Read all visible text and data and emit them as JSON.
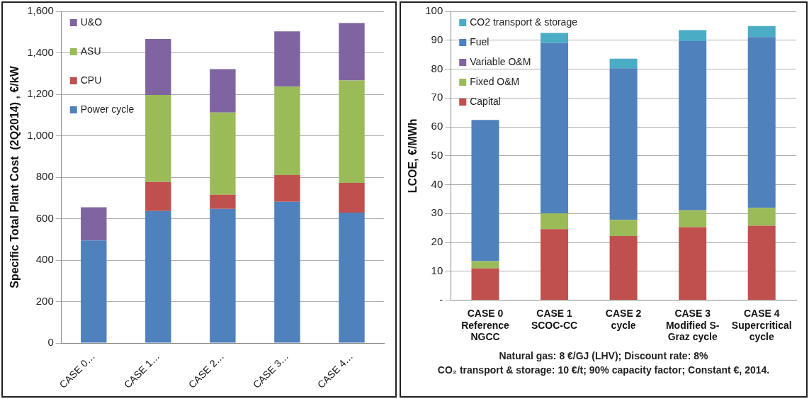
{
  "chart_data": [
    {
      "type": "bar",
      "stacked": true,
      "ylabel": "Specific Total Plant Cost  (2Q2014) , €/kW",
      "categories": [
        "CASE 0…",
        "CASE 1…",
        "CASE 2…",
        "CASE 3…",
        "CASE 4…"
      ],
      "series": [
        {
          "name": "Power cycle",
          "color": "#4f81bd",
          "values": [
            495,
            637,
            647,
            681,
            629
          ]
        },
        {
          "name": "CPU",
          "color": "#c0504d",
          "values": [
            0,
            140,
            68,
            129,
            144
          ]
        },
        {
          "name": "ASU",
          "color": "#9bbb59",
          "values": [
            0,
            420,
            397,
            427,
            494
          ]
        },
        {
          "name": "U&O",
          "color": "#8064a2",
          "values": [
            160,
            270,
            209,
            266,
            277
          ]
        }
      ],
      "ylim": [
        0,
        1600
      ],
      "yticks": [
        0,
        200,
        400,
        600,
        800,
        {
          "value": 1000,
          "label": "1,000"
        },
        {
          "value": 1200,
          "label": "1,200"
        },
        {
          "value": 1400,
          "label": "1,400"
        },
        {
          "value": 1600,
          "label": "1,600"
        }
      ],
      "grid": "y",
      "legend": "top left"
    },
    {
      "type": "bar",
      "stacked": true,
      "ylabel": "LCOE, €/MWh",
      "categories": [
        "CASE 0\nReference\nNGCC",
        "CASE 1\nSCOC-CC",
        "CASE 2\ncycle",
        "CASE 3\nModified S-\nGraz cycle",
        "CASE 4\nSupercritical\ncycle"
      ],
      "series": [
        {
          "name": "Capital",
          "color": "#c0504d",
          "values": [
            11.0,
            24.6,
            22.2,
            25.3,
            25.8
          ]
        },
        {
          "name": "Fixed O&M",
          "color": "#9bbb59",
          "values": [
            2.5,
            5.5,
            5.6,
            5.8,
            6.2
          ]
        },
        {
          "name": "Variable O&M",
          "color": "#8064a2",
          "values": [
            0,
            0,
            0,
            0,
            0
          ]
        },
        {
          "name": "Fuel",
          "color": "#4f81bd",
          "values": [
            48.9,
            58.9,
            52.5,
            58.6,
            59.1
          ]
        },
        {
          "name": "CO2 transport & storage",
          "color": "#4bacc6",
          "values": [
            0,
            3.5,
            3.3,
            3.8,
            3.8
          ]
        }
      ],
      "ylim": [
        0,
        100
      ],
      "yticks": [
        {
          "value": 0,
          "label": "-"
        },
        10,
        20,
        30,
        40,
        50,
        60,
        70,
        80,
        90,
        100
      ],
      "grid": "y",
      "legend": "top left",
      "annotations": [
        "Natural gas: 8 €/GJ (LHV); Discount rate: 8%",
        "CO₂ transport & storage: 10 €/t; 90% capacity factor; Constant €, 2014."
      ]
    }
  ]
}
